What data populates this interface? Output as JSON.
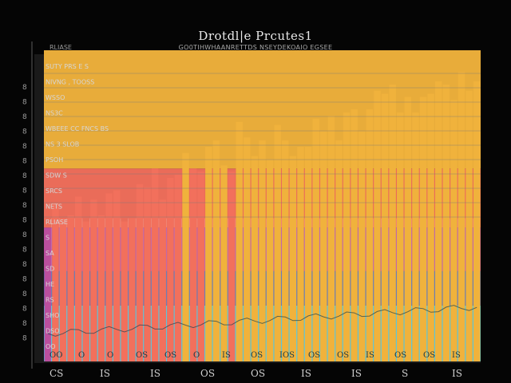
{
  "header": {
    "title": "Drotdl|e Prcutes1",
    "subtitle": "GO0TIHWHAANRETTDS  NSEYDEKOAIO EGSEE",
    "corner_label": "RLIASE"
  },
  "colors": {
    "background": "#050505",
    "panel": "#1a1a1a",
    "bands": [
      "#f0b23c",
      "#f2705c",
      "#ba4f9e",
      "#4f68b0",
      "#3cc2df"
    ]
  },
  "chart_data": {
    "type": "bar",
    "layout_style": "stacked horizontal color bands with vertical bars",
    "title": "Drotdl|e Prcutes1",
    "subtitle": "GO0TIHWHAANRETTDS  NSEYDEKOAIO EGSEE",
    "xlabel": "",
    "ylabel": "",
    "ylim": [
      0,
      100
    ],
    "grid": true,
    "legend": "none",
    "bands": [
      {
        "color": "#3cc2df",
        "from": 0,
        "to": 18
      },
      {
        "color": "#4f68b0",
        "from": 18,
        "to": 29
      },
      {
        "color": "#ba4f9e",
        "from": 29,
        "to": 43
      },
      {
        "color": "#f2705c",
        "from": 43,
        "to": 62
      },
      {
        "color": "#f0b23c",
        "from": 62,
        "to": 100
      }
    ],
    "row_labels": [
      "SUTY   PRS E S",
      "NIVNG  ,  TOOSS",
      "WSSO",
      "NS3C",
      "WBEEE CC  FNCS BS",
      "NS  3 SLOB",
      "PSOH",
      "SDW   S",
      "SRCS",
      "NETS",
      "RLIASE",
      "S",
      "SA",
      "SD",
      "HE",
      "RS",
      "SHO",
      "DSO",
      "OO"
    ],
    "y_ticks": [
      "8",
      "8",
      "8",
      "8",
      "8",
      "8",
      "8",
      "8",
      "8",
      "8",
      "8",
      "8",
      "8",
      "8",
      "8",
      "8",
      "8",
      "8"
    ],
    "x_ticks": [
      "CS",
      "IS",
      "IS",
      "OS",
      "OS",
      "IS",
      "IS",
      "S",
      "IS"
    ],
    "inner_x_labels": [
      "OO",
      "O",
      "O",
      "OS",
      "OS",
      "O",
      "IS",
      "OS",
      "IOS",
      "OS",
      "OS",
      "IS",
      "OS",
      "OS",
      "IS"
    ],
    "values": [
      43,
      51,
      46,
      47,
      53,
      45,
      52,
      47,
      54,
      55,
      45,
      46,
      57,
      56,
      62,
      52,
      59,
      60,
      67,
      62,
      61,
      69,
      71,
      63,
      61,
      77,
      72,
      66,
      71,
      65,
      76,
      71,
      66,
      69,
      69,
      78,
      74,
      79,
      71,
      80,
      81,
      74,
      81,
      87,
      86,
      89,
      80,
      85,
      80,
      85,
      86,
      90,
      89,
      84,
      93,
      87,
      90
    ]
  }
}
